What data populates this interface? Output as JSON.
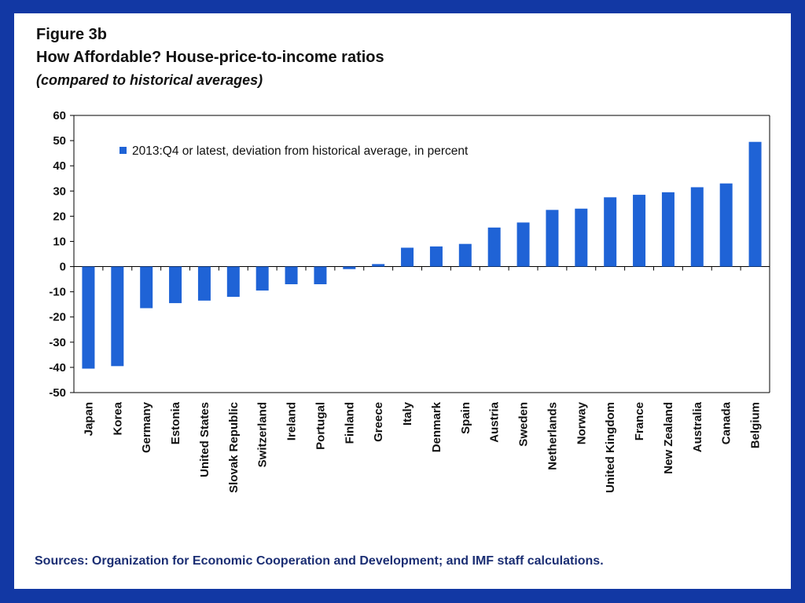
{
  "header": {
    "figure_label": "Figure 3b",
    "title": "How Affordable? House-price-to-income ratios",
    "subtitle": "(compared to historical averages)"
  },
  "footer": {
    "sources": "Sources: Organization for Economic Cooperation and Development; and IMF staff calculations."
  },
  "colors": {
    "background": "#1238a4",
    "bar": "#1f63d6",
    "sources_text": "#1b2e73"
  },
  "chart_data": {
    "type": "bar",
    "title": "How Affordable? House-price-to-income ratios",
    "subtitle": "(compared to historical averages)",
    "categories": [
      "Japan",
      "Korea",
      "Germany",
      "Estonia",
      "United States",
      "Slovak Republic",
      "Switzerland",
      "Ireland",
      "Portugal",
      "Finland",
      "Greece",
      "Italy",
      "Denmark",
      "Spain",
      "Austria",
      "Sweden",
      "Netherlands",
      "Norway",
      "United Kingdom",
      "France",
      "New Zealand",
      "Australia",
      "Canada",
      "Belgium"
    ],
    "series": [
      {
        "name": "2013:Q4 or latest, deviation from historical average, in percent",
        "values": [
          -40.5,
          -39.5,
          -16.5,
          -14.5,
          -13.5,
          -12,
          -9.5,
          -7,
          -7,
          -1,
          1,
          7.5,
          8,
          9,
          15.5,
          17.5,
          22.5,
          23,
          27.5,
          28.5,
          29.5,
          31.5,
          33,
          49.5
        ]
      }
    ],
    "ylim": [
      -50,
      60
    ],
    "yticks": [
      -50,
      -40,
      -30,
      -20,
      -10,
      0,
      10,
      20,
      30,
      40,
      50,
      60
    ],
    "xlabel": "",
    "ylabel": "",
    "grid": false,
    "legend_position": "top-left"
  }
}
